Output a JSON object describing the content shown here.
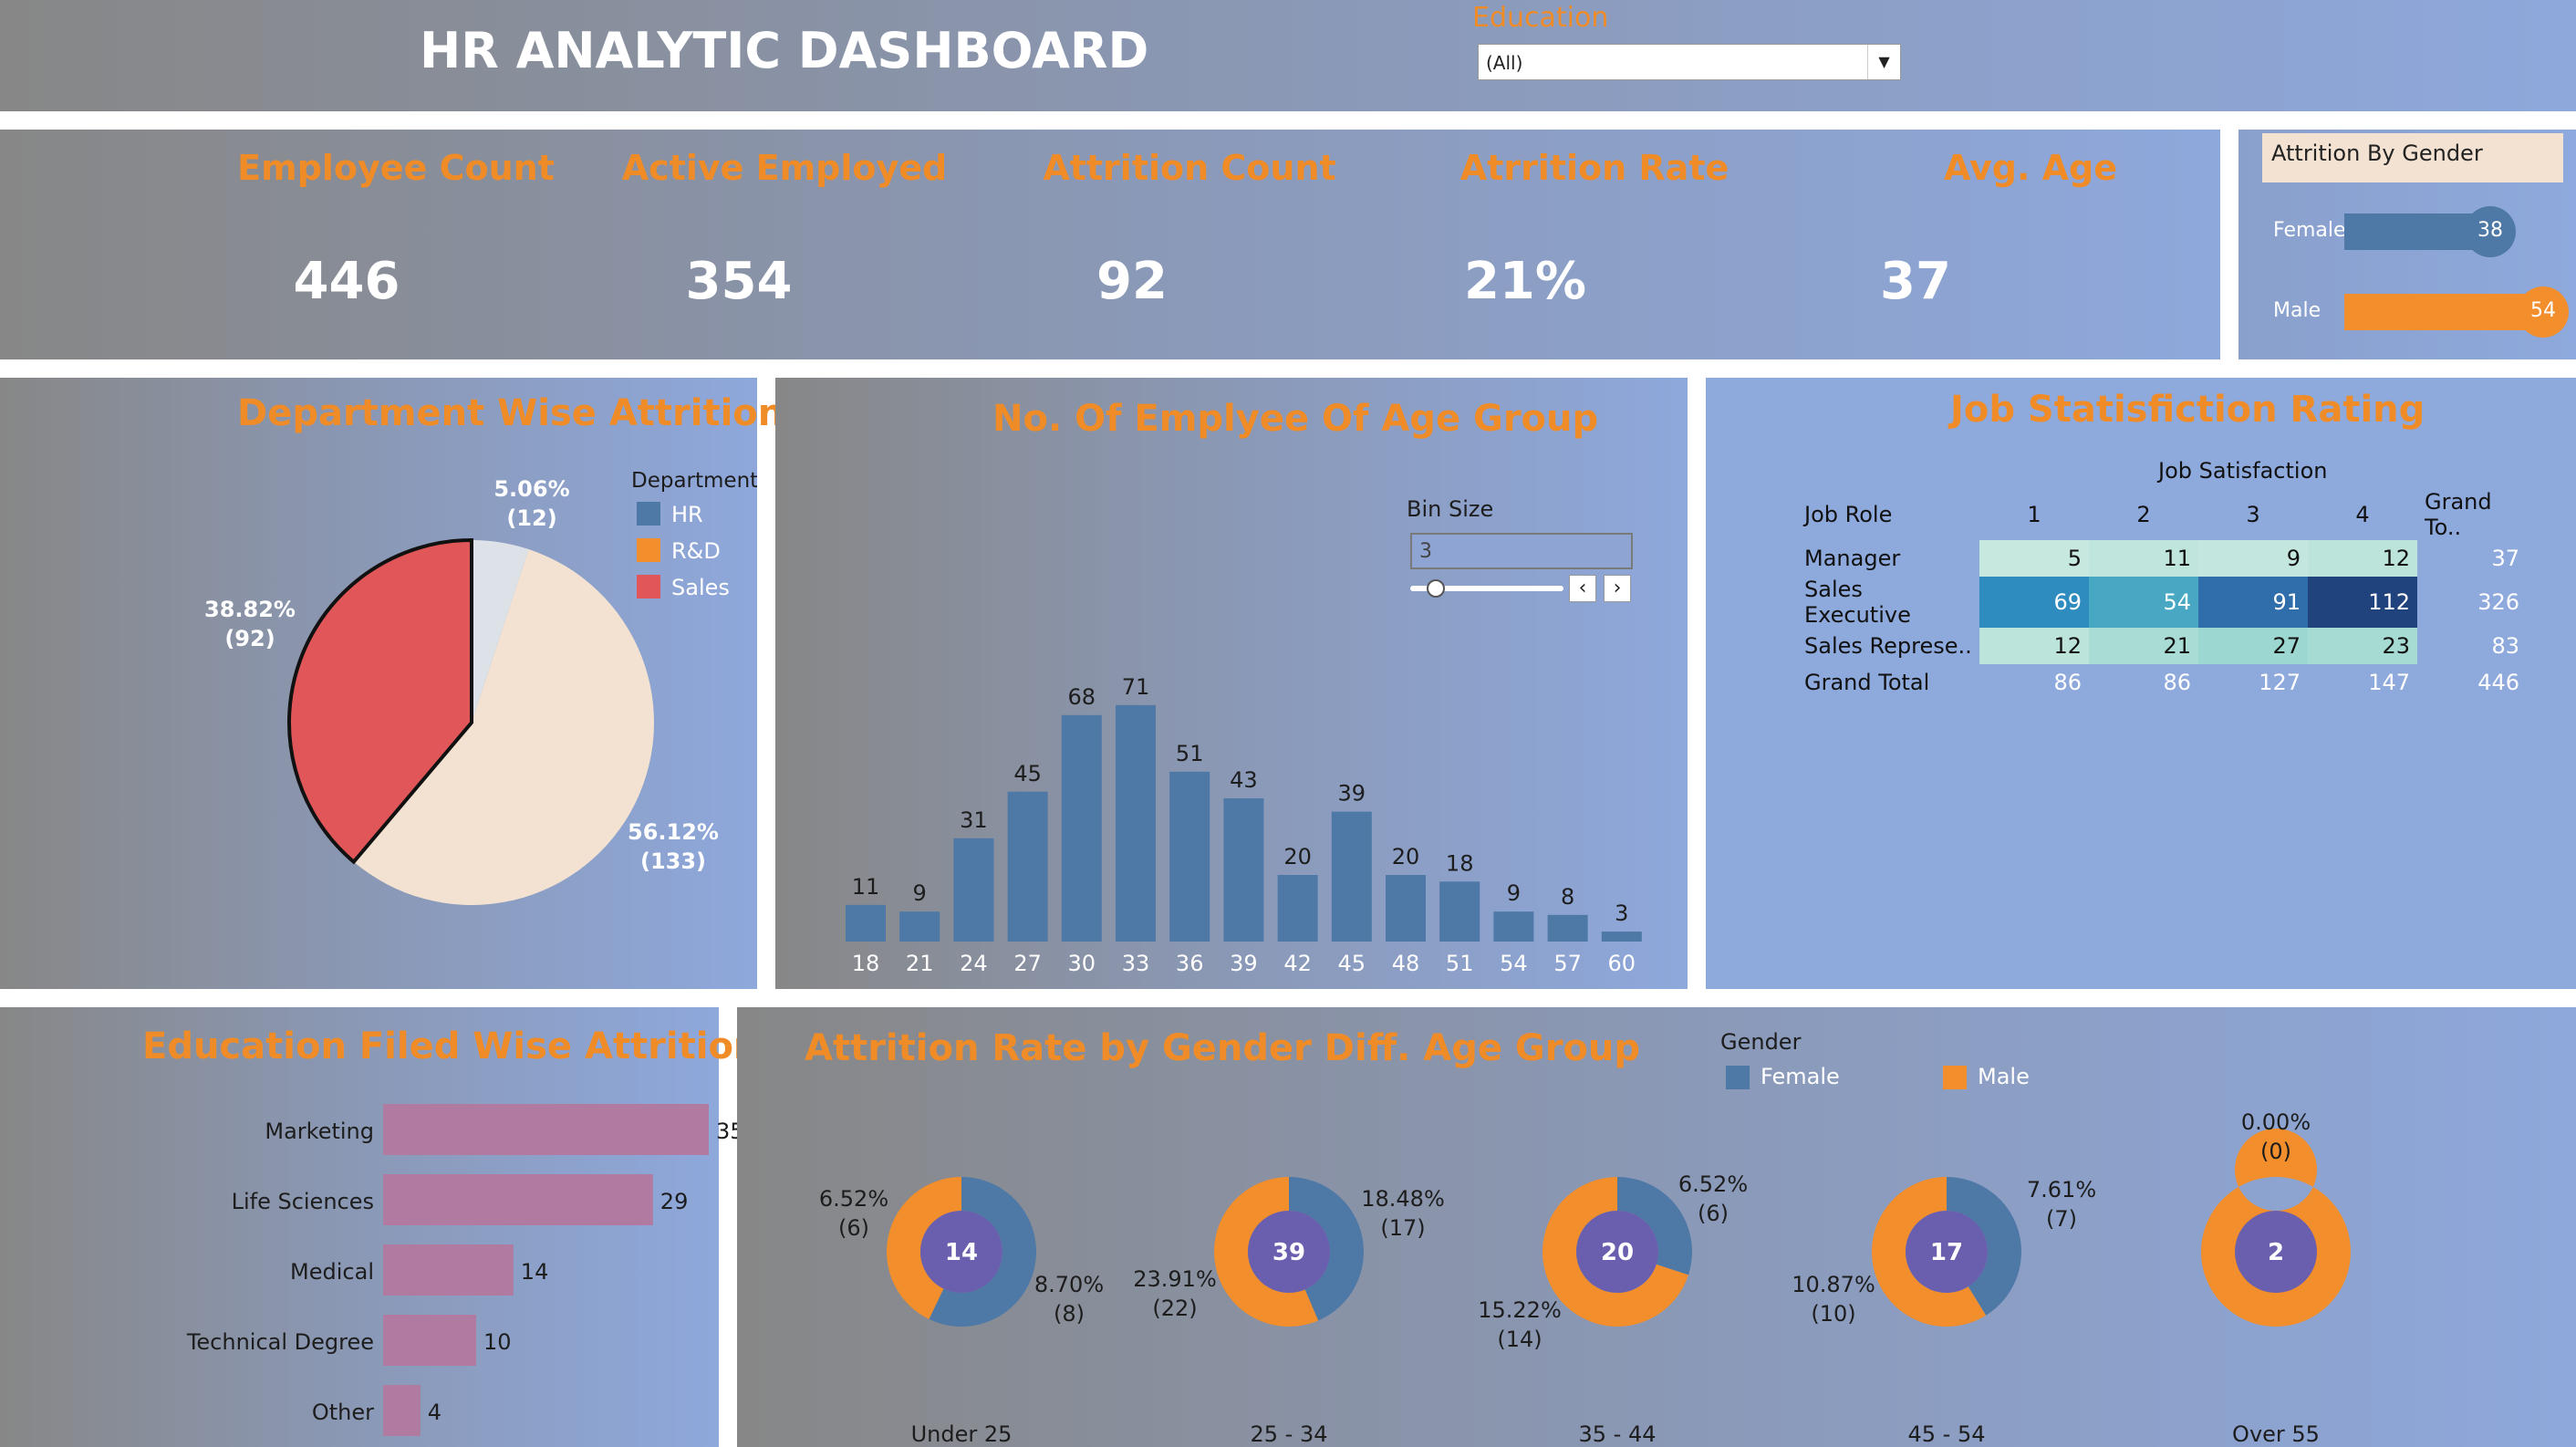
{
  "header": {
    "title": "HR ANALYTIC DASHBOARD",
    "filter_label": "Education",
    "filter_value": "(All)"
  },
  "kpis": [
    {
      "label": "Employee Count",
      "value": "446"
    },
    {
      "label": "Active Employed",
      "value": "354"
    },
    {
      "label": "Attrition Count",
      "value": "92"
    },
    {
      "label": "Atrrition Rate",
      "value": "21%"
    },
    {
      "label": "Avg. Age",
      "value": "37"
    }
  ],
  "gender_panel": {
    "title": "Attrition By Gender",
    "rows": [
      {
        "label": "Female",
        "value": 38,
        "color": "#4e79a7"
      },
      {
        "label": "Male",
        "value": 54,
        "color": "#f28e2b"
      }
    ]
  },
  "colors": {
    "accent": "#f08c28",
    "blue": "#4e79a7",
    "orange": "#f28e2b",
    "red": "#e15759",
    "peach": "#f3e2d1",
    "hr": "#dde1e8",
    "purple": "#6a5fae",
    "pink": "#b07aa1"
  },
  "dept": {
    "title": "Department Wise Attrition",
    "legend_title": "Department",
    "legend": [
      {
        "name": "HR",
        "color": "#4e79a7"
      },
      {
        "name": "R&D",
        "color": "#f28e2b"
      },
      {
        "name": "Sales",
        "color": "#e15759"
      }
    ],
    "labels": {
      "hr_pct": "5.06%",
      "hr_cnt": "(12)",
      "rd_pct": "56.12%",
      "rd_cnt": "(133)",
      "sales_pct": "38.82%",
      "sales_cnt": "(92)"
    }
  },
  "age": {
    "title": "No. Of Emplyee Of Age Group",
    "bin_label": "Bin Size",
    "bin_value": "3"
  },
  "job": {
    "title": "Job Statisfiction Rating",
    "col_header": "Job Satisfaction",
    "headers": [
      "Job Role",
      "1",
      "2",
      "3",
      "4",
      "Grand To.."
    ],
    "rows": [
      {
        "role": "Manager",
        "vals": [
          "5",
          "11",
          "9",
          "12"
        ],
        "total": "37"
      },
      {
        "role": "Sales Executive",
        "vals": [
          "69",
          "54",
          "91",
          "112"
        ],
        "total": "326"
      },
      {
        "role": "Sales Represe..",
        "vals": [
          "12",
          "21",
          "27",
          "23"
        ],
        "total": "83"
      }
    ],
    "grand": {
      "role": "Grand Total",
      "vals": [
        "86",
        "86",
        "127",
        "147"
      ],
      "total": "446"
    }
  },
  "edu": {
    "title": "Education Filed Wise Attrition"
  },
  "gender_age": {
    "title": "Attrition Rate by Gender Diff. Age Group",
    "legend_title": "Gender",
    "legend": [
      {
        "name": "Female",
        "color": "#4e79a7"
      },
      {
        "name": "Male",
        "color": "#f28e2b"
      }
    ],
    "groups": [
      {
        "name": "Under 25",
        "total": "14",
        "female": 8,
        "male": 6,
        "f_pct": "8.70%",
        "f_cnt": "(8)",
        "m_pct": "6.52%",
        "m_cnt": "(6)"
      },
      {
        "name": "25 - 34",
        "total": "39",
        "female": 17,
        "male": 22,
        "f_pct": "18.48%",
        "f_cnt": "(17)",
        "m_pct": "23.91%",
        "m_cnt": "(22)"
      },
      {
        "name": "35 - 44",
        "total": "20",
        "female": 6,
        "male": 14,
        "f_pct": "6.52%",
        "f_cnt": "(6)",
        "m_pct": "15.22%",
        "m_cnt": "(14)"
      },
      {
        "name": "45 - 54",
        "total": "17",
        "female": 7,
        "male": 10,
        "f_pct": "7.61%",
        "f_cnt": "(7)",
        "m_pct": "10.87%",
        "m_cnt": "(10)"
      },
      {
        "name": "Over 55",
        "total": "2",
        "female": 0,
        "male": 2,
        "f_pct": "0.00%",
        "f_cnt": "(0)",
        "m_pct": "",
        "m_cnt": ""
      }
    ]
  },
  "chart_data": [
    {
      "type": "pie",
      "title": "Department Wise Attrition",
      "categories": [
        "HR",
        "R&D",
        "Sales"
      ],
      "values": [
        12,
        133,
        92
      ],
      "percent": [
        5.06,
        56.12,
        38.82
      ],
      "legend": "top-right"
    },
    {
      "type": "bar",
      "title": "No. Of Emplyee Of Age Group",
      "categories": [
        "18",
        "21",
        "24",
        "27",
        "30",
        "33",
        "36",
        "39",
        "42",
        "45",
        "48",
        "51",
        "54",
        "57",
        "60"
      ],
      "values": [
        11,
        9,
        31,
        45,
        68,
        71,
        51,
        43,
        20,
        39,
        20,
        18,
        9,
        8,
        3
      ]
    },
    {
      "type": "heatmap",
      "title": "Job Statisfiction Rating",
      "rows": [
        "Manager",
        "Sales Executive",
        "Sales Represe.."
      ],
      "columns": [
        "1",
        "2",
        "3",
        "4"
      ],
      "values": [
        [
          5,
          11,
          9,
          12
        ],
        [
          69,
          54,
          91,
          112
        ],
        [
          12,
          21,
          27,
          23
        ]
      ]
    },
    {
      "type": "bar",
      "title": "Education Filed Wise Attrition",
      "categories": [
        "Marketing",
        "Life Sciences",
        "Medical",
        "Technical Degree",
        "Other"
      ],
      "values": [
        35,
        29,
        14,
        10,
        4
      ]
    },
    {
      "type": "pie",
      "title": "Attrition Rate by Gender Diff. Age Group",
      "categories": [
        "Under 25",
        "25 - 34",
        "35 - 44",
        "45 - 54",
        "Over 55"
      ],
      "series": [
        {
          "name": "Female",
          "values": [
            8,
            17,
            6,
            7,
            0
          ]
        },
        {
          "name": "Male",
          "values": [
            6,
            22,
            14,
            10,
            2
          ]
        }
      ]
    }
  ]
}
